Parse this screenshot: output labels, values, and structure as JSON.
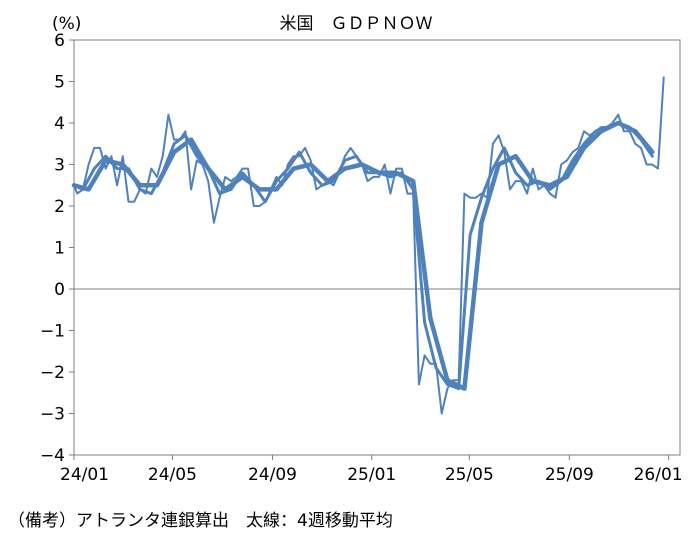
{
  "chart_data": {
    "type": "line",
    "title": "米国　ＧＤＰＮＯＷ",
    "ylabel": "(%)",
    "xlabel": "",
    "ylim": [
      -4,
      6
    ],
    "yticks": [
      -4,
      -3,
      -2,
      -1,
      0,
      1,
      2,
      3,
      4,
      5,
      6
    ],
    "ytick_labels": [
      "−4",
      "−3",
      "−2",
      "−1",
      "0",
      "1",
      "2",
      "3",
      "4",
      "5",
      "6"
    ],
    "xlim": [
      "2024-01-01",
      "2026-01-15"
    ],
    "xticks": [
      "2024-01-01",
      "2024-05-01",
      "2024-09-01",
      "2025-01-01",
      "2025-05-01",
      "2025-09-01",
      "2026-01-01"
    ],
    "xtick_labels": [
      "24/01",
      "24/05",
      "24/09",
      "25/01",
      "25/05",
      "25/09",
      "26/01"
    ],
    "grid": false,
    "zero_line": true,
    "series": [
      {
        "style": "thin",
        "color": "#4f81bd",
        "points": [
          [
            "2024-01-01",
            2.5
          ],
          [
            "2024-01-05",
            2.3
          ],
          [
            "2024-01-12",
            2.4
          ],
          [
            "2024-01-19",
            3.0
          ],
          [
            "2024-01-26",
            3.4
          ],
          [
            "2024-02-02",
            3.4
          ],
          [
            "2024-02-09",
            2.9
          ],
          [
            "2024-02-16",
            3.2
          ],
          [
            "2024-02-23",
            2.5
          ],
          [
            "2024-03-01",
            3.2
          ],
          [
            "2024-03-08",
            2.1
          ],
          [
            "2024-03-15",
            2.1
          ],
          [
            "2024-03-22",
            2.4
          ],
          [
            "2024-03-29",
            2.3
          ],
          [
            "2024-04-05",
            2.9
          ],
          [
            "2024-04-12",
            2.7
          ],
          [
            "2024-04-19",
            3.2
          ],
          [
            "2024-04-26",
            4.2
          ],
          [
            "2024-05-03",
            3.6
          ],
          [
            "2024-05-10",
            3.6
          ],
          [
            "2024-05-17",
            3.8
          ],
          [
            "2024-05-24",
            2.4
          ],
          [
            "2024-05-31",
            3.1
          ],
          [
            "2024-06-07",
            3.0
          ],
          [
            "2024-06-14",
            2.6
          ],
          [
            "2024-06-21",
            1.6
          ],
          [
            "2024-06-28",
            2.2
          ],
          [
            "2024-07-05",
            2.7
          ],
          [
            "2024-07-12",
            2.6
          ],
          [
            "2024-07-19",
            2.7
          ],
          [
            "2024-07-26",
            2.9
          ],
          [
            "2024-08-02",
            2.9
          ],
          [
            "2024-08-09",
            2.0
          ],
          [
            "2024-08-16",
            2.0
          ],
          [
            "2024-08-23",
            2.1
          ],
          [
            "2024-08-30",
            2.4
          ],
          [
            "2024-09-06",
            2.7
          ],
          [
            "2024-09-13",
            2.5
          ],
          [
            "2024-09-20",
            3.0
          ],
          [
            "2024-09-27",
            3.2
          ],
          [
            "2024-10-04",
            3.2
          ],
          [
            "2024-10-11",
            3.4
          ],
          [
            "2024-10-18",
            3.1
          ],
          [
            "2024-10-25",
            2.4
          ],
          [
            "2024-11-01",
            2.5
          ],
          [
            "2024-11-08",
            2.6
          ],
          [
            "2024-11-15",
            2.5
          ],
          [
            "2024-11-22",
            2.8
          ],
          [
            "2024-11-29",
            3.2
          ],
          [
            "2024-12-06",
            3.4
          ],
          [
            "2024-12-13",
            3.2
          ],
          [
            "2024-12-20",
            3.0
          ],
          [
            "2024-12-27",
            2.6
          ],
          [
            "2025-01-03",
            2.7
          ],
          [
            "2025-01-10",
            2.7
          ],
          [
            "2025-01-17",
            3.0
          ],
          [
            "2025-01-24",
            2.3
          ],
          [
            "2025-01-31",
            2.9
          ],
          [
            "2025-02-07",
            2.9
          ],
          [
            "2025-02-14",
            2.3
          ],
          [
            "2025-02-21",
            2.3
          ],
          [
            "2025-02-28",
            -2.3
          ],
          [
            "2025-03-07",
            -1.6
          ],
          [
            "2025-03-14",
            -1.8
          ],
          [
            "2025-03-21",
            -1.8
          ],
          [
            "2025-03-28",
            -3.0
          ],
          [
            "2025-04-04",
            -2.4
          ],
          [
            "2025-04-11",
            -2.2
          ],
          [
            "2025-04-18",
            -2.2
          ],
          [
            "2025-04-25",
            2.3
          ],
          [
            "2025-05-02",
            2.2
          ],
          [
            "2025-05-09",
            2.2
          ],
          [
            "2025-05-16",
            2.3
          ],
          [
            "2025-05-23",
            2.2
          ],
          [
            "2025-05-30",
            3.5
          ],
          [
            "2025-06-06",
            3.7
          ],
          [
            "2025-06-13",
            3.3
          ],
          [
            "2025-06-20",
            2.4
          ],
          [
            "2025-06-27",
            2.6
          ],
          [
            "2025-07-04",
            2.6
          ],
          [
            "2025-07-11",
            2.3
          ],
          [
            "2025-07-18",
            2.9
          ],
          [
            "2025-07-25",
            2.4
          ],
          [
            "2025-08-01",
            2.5
          ],
          [
            "2025-08-08",
            2.3
          ],
          [
            "2025-08-15",
            2.2
          ],
          [
            "2025-08-22",
            3.0
          ],
          [
            "2025-08-29",
            3.1
          ],
          [
            "2025-09-05",
            3.3
          ],
          [
            "2025-09-12",
            3.4
          ],
          [
            "2025-09-19",
            3.8
          ],
          [
            "2025-09-26",
            3.7
          ],
          [
            "2025-10-03",
            3.8
          ],
          [
            "2025-10-10",
            3.9
          ],
          [
            "2025-10-17",
            3.9
          ],
          [
            "2025-10-24",
            4.0
          ],
          [
            "2025-10-31",
            4.2
          ],
          [
            "2025-11-07",
            3.8
          ],
          [
            "2025-11-14",
            3.8
          ],
          [
            "2025-11-21",
            3.5
          ],
          [
            "2025-11-28",
            3.4
          ],
          [
            "2025-12-05",
            3.0
          ],
          [
            "2025-12-12",
            3.0
          ],
          [
            "2025-12-19",
            2.9
          ],
          [
            "2025-12-26",
            5.1
          ]
        ]
      },
      {
        "style": "medium",
        "color": "#4f81bd",
        "points": [
          [
            "2024-01-01",
            2.5
          ],
          [
            "2024-01-12",
            2.4
          ],
          [
            "2024-01-26",
            2.9
          ],
          [
            "2024-02-09",
            3.2
          ],
          [
            "2024-02-23",
            2.9
          ],
          [
            "2024-03-08",
            2.9
          ],
          [
            "2024-03-22",
            2.4
          ],
          [
            "2024-04-05",
            2.3
          ],
          [
            "2024-04-19",
            2.8
          ],
          [
            "2024-05-03",
            3.5
          ],
          [
            "2024-05-17",
            3.7
          ],
          [
            "2024-05-31",
            3.2
          ],
          [
            "2024-06-14",
            2.9
          ],
          [
            "2024-06-28",
            2.3
          ],
          [
            "2024-07-12",
            2.4
          ],
          [
            "2024-07-26",
            2.8
          ],
          [
            "2024-08-09",
            2.5
          ],
          [
            "2024-08-23",
            2.1
          ],
          [
            "2024-09-06",
            2.6
          ],
          [
            "2024-09-20",
            2.9
          ],
          [
            "2024-10-04",
            3.3
          ],
          [
            "2024-10-18",
            2.8
          ],
          [
            "2024-11-01",
            2.5
          ],
          [
            "2024-11-15",
            2.6
          ],
          [
            "2024-11-29",
            3.1
          ],
          [
            "2024-12-13",
            3.2
          ],
          [
            "2024-12-27",
            2.8
          ],
          [
            "2025-01-10",
            2.8
          ],
          [
            "2025-01-24",
            2.7
          ],
          [
            "2025-02-07",
            2.8
          ],
          [
            "2025-02-21",
            2.4
          ],
          [
            "2025-03-07",
            -0.8
          ],
          [
            "2025-03-21",
            -1.9
          ],
          [
            "2025-04-04",
            -2.3
          ],
          [
            "2025-04-18",
            -2.4
          ],
          [
            "2025-05-02",
            1.3
          ],
          [
            "2025-05-16",
            2.2
          ],
          [
            "2025-05-30",
            2.9
          ],
          [
            "2025-06-13",
            3.4
          ],
          [
            "2025-06-27",
            2.8
          ],
          [
            "2025-07-11",
            2.5
          ],
          [
            "2025-07-25",
            2.6
          ],
          [
            "2025-08-08",
            2.4
          ],
          [
            "2025-08-22",
            2.6
          ],
          [
            "2025-09-05",
            3.1
          ],
          [
            "2025-09-19",
            3.5
          ],
          [
            "2025-10-03",
            3.8
          ],
          [
            "2025-10-17",
            3.9
          ],
          [
            "2025-10-31",
            4.0
          ],
          [
            "2025-11-14",
            3.9
          ],
          [
            "2025-11-28",
            3.6
          ],
          [
            "2025-12-12",
            3.2
          ]
        ]
      },
      {
        "style": "thick",
        "color": "#4f81bd",
        "name": "4週移動平均",
        "points": [
          [
            "2024-01-01",
            2.5
          ],
          [
            "2024-01-19",
            2.4
          ],
          [
            "2024-02-09",
            3.1
          ],
          [
            "2024-03-01",
            3.0
          ],
          [
            "2024-03-22",
            2.5
          ],
          [
            "2024-04-12",
            2.5
          ],
          [
            "2024-05-03",
            3.3
          ],
          [
            "2024-05-24",
            3.6
          ],
          [
            "2024-06-14",
            2.9
          ],
          [
            "2024-07-05",
            2.4
          ],
          [
            "2024-07-26",
            2.7
          ],
          [
            "2024-08-16",
            2.4
          ],
          [
            "2024-09-06",
            2.4
          ],
          [
            "2024-09-27",
            2.9
          ],
          [
            "2024-10-18",
            3.0
          ],
          [
            "2024-11-08",
            2.6
          ],
          [
            "2024-11-29",
            2.9
          ],
          [
            "2024-12-20",
            3.0
          ],
          [
            "2025-01-10",
            2.8
          ],
          [
            "2025-01-31",
            2.8
          ],
          [
            "2025-02-21",
            2.6
          ],
          [
            "2025-03-14",
            -0.7
          ],
          [
            "2025-04-04",
            -2.2
          ],
          [
            "2025-04-25",
            -2.4
          ],
          [
            "2025-05-16",
            1.6
          ],
          [
            "2025-06-06",
            3.0
          ],
          [
            "2025-06-27",
            3.2
          ],
          [
            "2025-07-18",
            2.6
          ],
          [
            "2025-08-08",
            2.5
          ],
          [
            "2025-08-29",
            2.7
          ],
          [
            "2025-09-19",
            3.4
          ],
          [
            "2025-10-10",
            3.8
          ],
          [
            "2025-10-31",
            4.0
          ],
          [
            "2025-11-21",
            3.8
          ],
          [
            "2025-12-12",
            3.3
          ]
        ]
      }
    ],
    "footer": "（備考）アトランタ連銀算出　太線：4週移動平均"
  }
}
